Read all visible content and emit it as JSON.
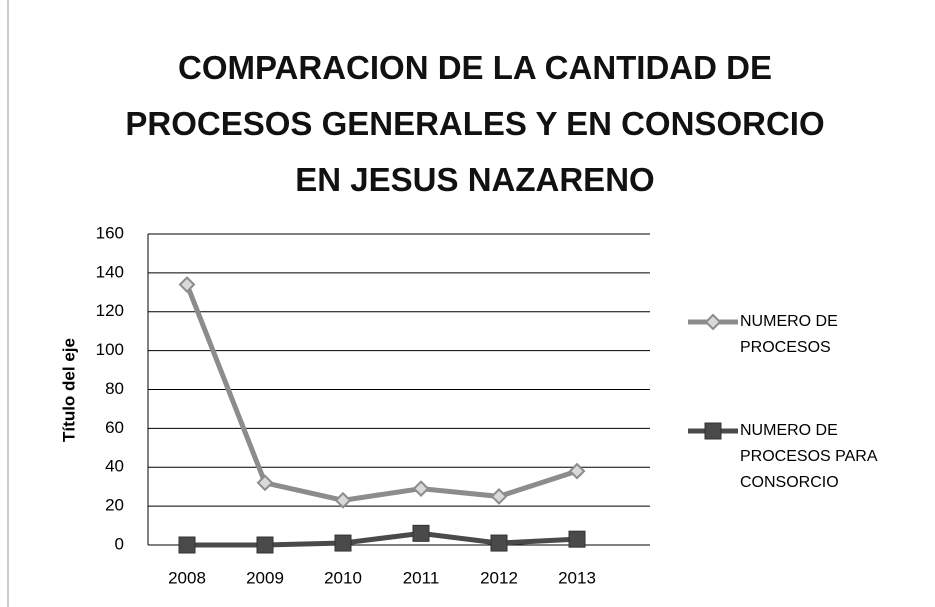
{
  "chart_data": {
    "type": "line",
    "title": "COMPARACION DE LA CANTIDAD DE PROCESOS GENERALES Y EN CONSORCIO EN JESUS NAZARENO",
    "y_label": "Título del eje",
    "categories": [
      "2008",
      "2009",
      "2010",
      "2011",
      "2012",
      "2013"
    ],
    "series": [
      {
        "name": "NUMERO DE PROCESOS",
        "color": "#8c8c8c",
        "marker": "diamond",
        "values": [
          134,
          32,
          23,
          29,
          25,
          38
        ]
      },
      {
        "name": "NUMERO DE PROCESOS PARA CONSORCIO",
        "color": "#4a4a4a",
        "marker": "square",
        "values": [
          0,
          0,
          1,
          6,
          1,
          3
        ]
      }
    ],
    "ylim": [
      0,
      160
    ],
    "yticks": [
      0,
      20,
      40,
      60,
      80,
      100,
      120,
      140,
      160
    ],
    "grid": true,
    "legend": "right"
  }
}
